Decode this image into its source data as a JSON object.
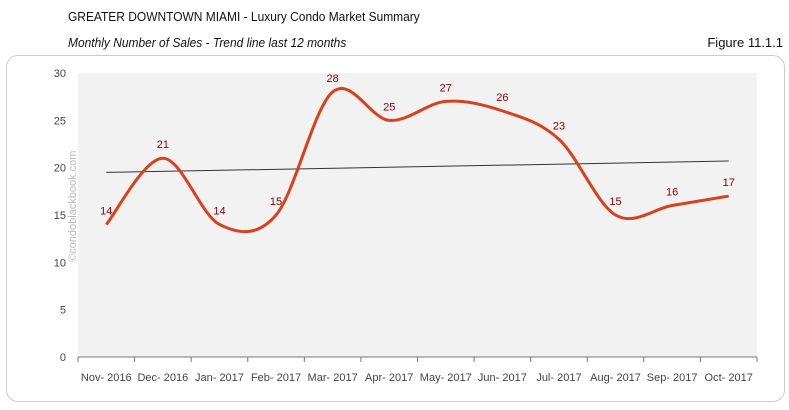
{
  "header": {
    "title": "GREATER DOWNTOWN MIAMI - Luxury Condo Market Summary",
    "subtitle": "Monthly Number of Sales - Trend line last 12 months",
    "figure": "Figure 11.1.1"
  },
  "watermark": "©condoblackbook.com",
  "chart_data": {
    "type": "line",
    "categories": [
      "Nov- 2016",
      "Dec- 2016",
      "Jan- 2017",
      "Feb- 2017",
      "Mar- 2017",
      "Apr- 2017",
      "May- 2017",
      "Jun- 2017",
      "Jul- 2017",
      "Aug- 2017",
      "Sep- 2017",
      "Oct- 2017"
    ],
    "values": [
      14,
      21,
      14,
      15,
      28,
      25,
      27,
      26,
      23,
      15,
      16,
      17
    ],
    "trendline": {
      "start": 19.5,
      "end": 20.7
    },
    "ylim": [
      0,
      30
    ],
    "yticks": [
      0,
      5,
      10,
      15,
      20,
      25,
      30
    ],
    "smooth": true,
    "grid": false,
    "colors": {
      "series": "#d9411e",
      "trend": "#333333",
      "plot_bg": "#f2f2f2",
      "labels": "#8b0000"
    }
  }
}
